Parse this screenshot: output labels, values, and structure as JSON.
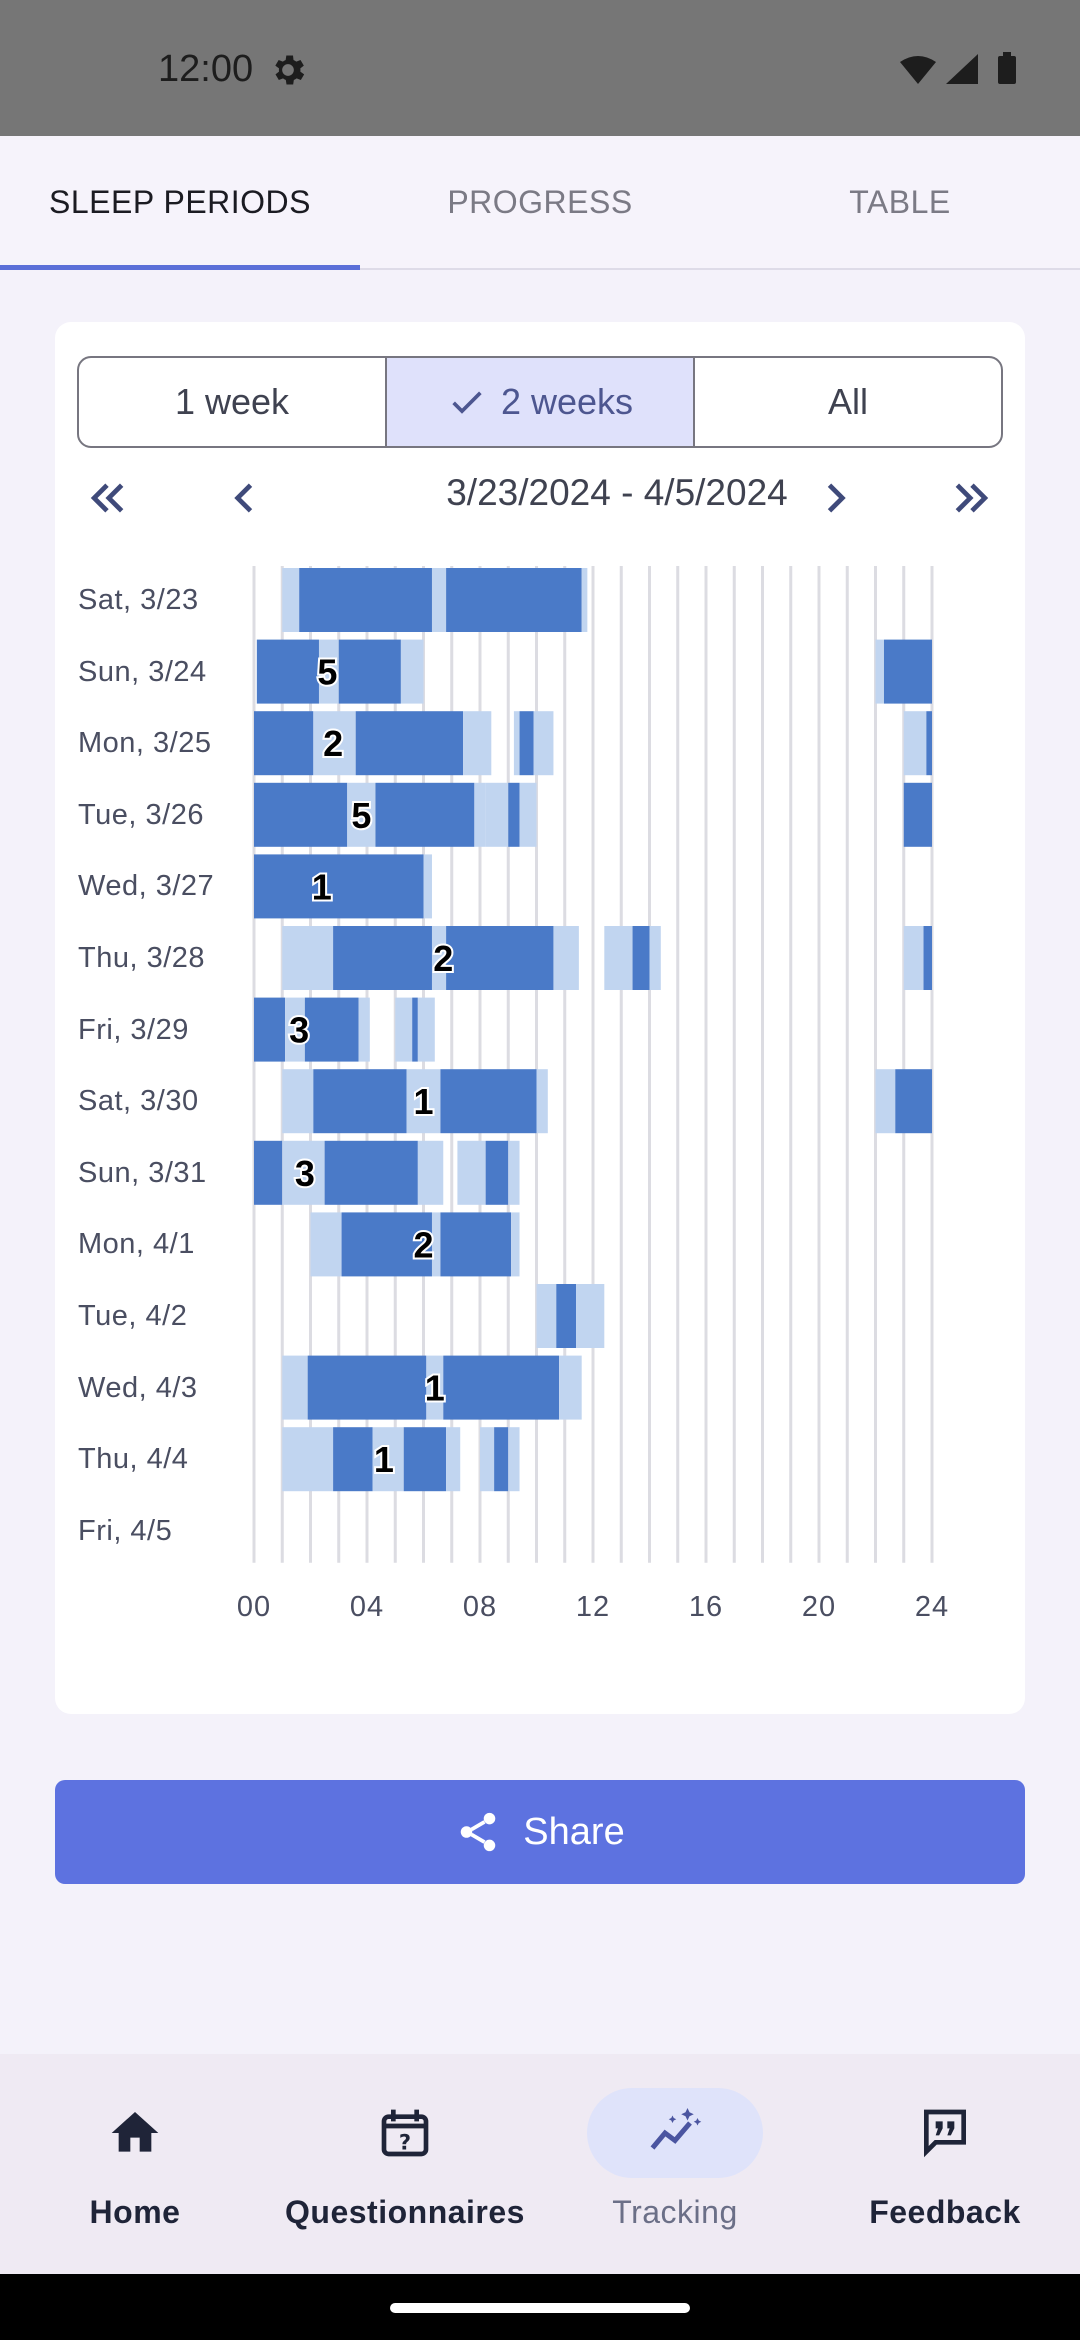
{
  "status_bar": {
    "time": "12:00"
  },
  "tabs": [
    {
      "label": "SLEEP PERIODS",
      "active": true
    },
    {
      "label": "PROGRESS",
      "active": false
    },
    {
      "label": "TABLE",
      "active": false
    }
  ],
  "range_selector": {
    "options": [
      {
        "label": "1 week",
        "selected": false
      },
      {
        "label": "2 weeks",
        "selected": true
      },
      {
        "label": "All",
        "selected": false
      }
    ]
  },
  "date_nav": {
    "range": "3/23/2024 - 4/5/2024"
  },
  "colors": {
    "sleep": "#4a7ac8",
    "light": "#c1d5f0",
    "accent": "#5d72e0"
  },
  "chart_data": {
    "type": "bar",
    "orientation": "horizontal-timeline",
    "x_unit": "hour of day",
    "xlim": [
      0,
      24
    ],
    "x_ticks": [
      "00",
      "04",
      "08",
      "12",
      "16",
      "20",
      "24"
    ],
    "rows": [
      {
        "label": "Sat, 3/23",
        "segments": [
          [
            1.0,
            1.6,
            "light"
          ],
          [
            1.6,
            6.3,
            "dark"
          ],
          [
            6.3,
            6.8,
            "light"
          ],
          [
            6.8,
            11.6,
            "dark"
          ],
          [
            11.6,
            11.8,
            "light"
          ]
        ],
        "markers": []
      },
      {
        "label": "Sun, 3/24",
        "segments": [
          [
            0.1,
            2.3,
            "dark"
          ],
          [
            2.3,
            3.0,
            "light"
          ],
          [
            3.0,
            5.2,
            "dark"
          ],
          [
            5.2,
            6.0,
            "light"
          ],
          [
            22.0,
            22.3,
            "light"
          ],
          [
            22.3,
            24.0,
            "dark"
          ]
        ],
        "markers": [
          {
            "x": 2.6,
            "text": "5"
          }
        ]
      },
      {
        "label": "Mon, 3/25",
        "segments": [
          [
            0,
            2.1,
            "dark"
          ],
          [
            2.1,
            3.6,
            "light"
          ],
          [
            3.6,
            7.4,
            "dark"
          ],
          [
            7.4,
            8.4,
            "light"
          ],
          [
            9.2,
            9.4,
            "light"
          ],
          [
            9.4,
            9.9,
            "dark"
          ],
          [
            9.9,
            10.6,
            "light"
          ],
          [
            23.0,
            23.8,
            "light"
          ],
          [
            23.8,
            24.0,
            "dark"
          ]
        ],
        "markers": [
          {
            "x": 2.8,
            "text": "2"
          }
        ]
      },
      {
        "label": "Tue, 3/26",
        "segments": [
          [
            0,
            3.3,
            "dark"
          ],
          [
            3.3,
            4.3,
            "light"
          ],
          [
            4.3,
            7.8,
            "dark"
          ],
          [
            7.8,
            8.2,
            "light"
          ],
          [
            8.2,
            9.0,
            "light"
          ],
          [
            9.0,
            9.4,
            "dark"
          ],
          [
            9.4,
            10.0,
            "light"
          ],
          [
            23.0,
            24.0,
            "dark"
          ]
        ],
        "markers": [
          {
            "x": 3.8,
            "text": "5"
          }
        ]
      },
      {
        "label": "Wed, 3/27",
        "segments": [
          [
            0,
            6.0,
            "dark"
          ],
          [
            6.0,
            6.3,
            "light"
          ]
        ],
        "markers": [
          {
            "x": 2.4,
            "text": "1"
          }
        ]
      },
      {
        "label": "Thu, 3/28",
        "segments": [
          [
            1.0,
            2.8,
            "light"
          ],
          [
            2.8,
            6.3,
            "dark"
          ],
          [
            6.3,
            6.8,
            "light"
          ],
          [
            6.8,
            10.6,
            "dark"
          ],
          [
            10.6,
            11.5,
            "light"
          ],
          [
            12.4,
            13.4,
            "light"
          ],
          [
            13.4,
            14.0,
            "dark"
          ],
          [
            14.0,
            14.4,
            "light"
          ],
          [
            23.0,
            23.7,
            "light"
          ],
          [
            23.7,
            24.0,
            "dark"
          ]
        ],
        "markers": [
          {
            "x": 6.7,
            "text": "2"
          }
        ]
      },
      {
        "label": "Fri, 3/29",
        "segments": [
          [
            0,
            1.1,
            "dark"
          ],
          [
            1.1,
            1.8,
            "light"
          ],
          [
            1.8,
            3.7,
            "dark"
          ],
          [
            3.7,
            4.1,
            "light"
          ],
          [
            5.0,
            5.6,
            "light"
          ],
          [
            5.6,
            5.8,
            "dark"
          ],
          [
            5.8,
            6.4,
            "light"
          ]
        ],
        "markers": [
          {
            "x": 1.6,
            "text": "3"
          }
        ]
      },
      {
        "label": "Sat, 3/30",
        "segments": [
          [
            1.0,
            2.1,
            "light"
          ],
          [
            2.1,
            5.4,
            "dark"
          ],
          [
            5.4,
            6.6,
            "light"
          ],
          [
            6.6,
            10.0,
            "dark"
          ],
          [
            10.0,
            10.4,
            "light"
          ],
          [
            22.0,
            22.7,
            "light"
          ],
          [
            22.7,
            24.0,
            "dark"
          ]
        ],
        "markers": [
          {
            "x": 6.0,
            "text": "1"
          }
        ]
      },
      {
        "label": "Sun, 3/31",
        "segments": [
          [
            0,
            1.0,
            "dark"
          ],
          [
            1.0,
            2.5,
            "light"
          ],
          [
            2.5,
            5.8,
            "dark"
          ],
          [
            5.8,
            6.7,
            "light"
          ],
          [
            7.2,
            8.2,
            "light"
          ],
          [
            8.2,
            9.0,
            "dark"
          ],
          [
            9.0,
            9.4,
            "light"
          ]
        ],
        "markers": [
          {
            "x": 1.8,
            "text": "3"
          }
        ]
      },
      {
        "label": "Mon, 4/1",
        "segments": [
          [
            2.0,
            3.1,
            "light"
          ],
          [
            3.1,
            6.3,
            "dark"
          ],
          [
            6.3,
            6.6,
            "light"
          ],
          [
            6.6,
            9.1,
            "dark"
          ],
          [
            9.1,
            9.4,
            "light"
          ]
        ],
        "markers": [
          {
            "x": 6.0,
            "text": "2"
          }
        ]
      },
      {
        "label": "Tue, 4/2",
        "segments": [
          [
            10.0,
            10.7,
            "light"
          ],
          [
            10.7,
            11.4,
            "dark"
          ],
          [
            11.4,
            12.4,
            "light"
          ]
        ],
        "markers": []
      },
      {
        "label": "Wed, 4/3",
        "segments": [
          [
            1.0,
            1.9,
            "light"
          ],
          [
            1.9,
            6.1,
            "dark"
          ],
          [
            6.1,
            6.7,
            "light"
          ],
          [
            6.7,
            10.8,
            "dark"
          ],
          [
            10.8,
            11.6,
            "light"
          ]
        ],
        "markers": [
          {
            "x": 6.4,
            "text": "1"
          }
        ]
      },
      {
        "label": "Thu, 4/4",
        "segments": [
          [
            1.0,
            2.8,
            "light"
          ],
          [
            2.8,
            4.2,
            "dark"
          ],
          [
            4.2,
            5.3,
            "light"
          ],
          [
            5.3,
            6.8,
            "dark"
          ],
          [
            6.8,
            7.3,
            "light"
          ],
          [
            8.0,
            8.5,
            "light"
          ],
          [
            8.5,
            9.0,
            "dark"
          ],
          [
            9.0,
            9.4,
            "light"
          ]
        ],
        "markers": [
          {
            "x": 4.6,
            "text": "1"
          }
        ]
      },
      {
        "label": "Fri, 4/5",
        "segments": [],
        "markers": []
      }
    ]
  },
  "share_button": {
    "label": "Share",
    "icon": "share-icon"
  },
  "bottom_nav": [
    {
      "label": "Home",
      "icon": "home-icon",
      "active": false
    },
    {
      "label": "Questionnaires",
      "icon": "calendar-question-icon",
      "active": false
    },
    {
      "label": "Tracking",
      "icon": "tracking-icon",
      "active": true
    },
    {
      "label": "Feedback",
      "icon": "feedback-icon",
      "active": false
    }
  ]
}
